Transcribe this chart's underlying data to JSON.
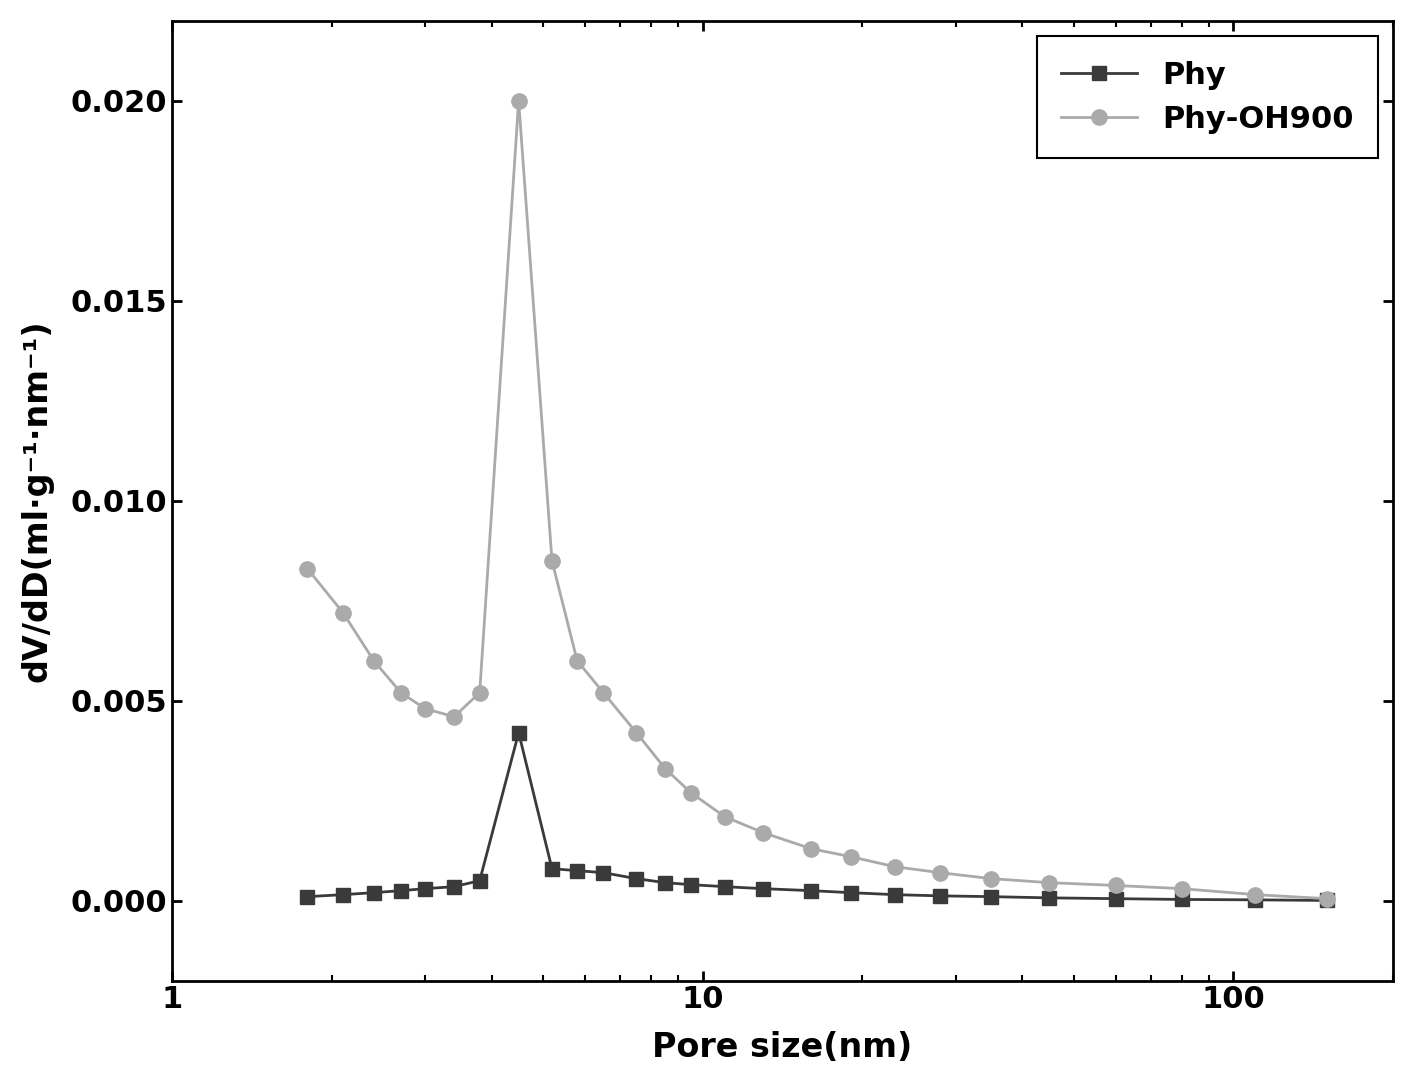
{
  "title": "",
  "xlabel": "Pore size(nm)",
  "ylabel": "dV/dD(ml·g⁻¹·nm⁻¹)",
  "xlim": [
    1,
    200
  ],
  "ylim": [
    -0.002,
    0.022
  ],
  "yticks": [
    0.0,
    0.005,
    0.01,
    0.015,
    0.02
  ],
  "background_color": "#ffffff",
  "phy_color": "#3a3a3a",
  "phyoh_color": "#aaaaaa",
  "phy_x": [
    1.8,
    2.1,
    2.4,
    2.7,
    3.0,
    3.4,
    3.8,
    4.5,
    5.2,
    5.8,
    6.5,
    7.5,
    8.5,
    9.5,
    11.0,
    13.0,
    16.0,
    19.0,
    23.0,
    28.0,
    35.0,
    45.0,
    60.0,
    80.0,
    110.0,
    150.0
  ],
  "phy_y": [
    0.0001,
    0.00015,
    0.0002,
    0.00025,
    0.0003,
    0.00035,
    0.0005,
    0.0042,
    0.0008,
    0.00075,
    0.0007,
    0.00055,
    0.00045,
    0.0004,
    0.00035,
    0.0003,
    0.00025,
    0.0002,
    0.00015,
    0.00012,
    0.0001,
    7e-05,
    5e-05,
    3e-05,
    2e-05,
    5e-06
  ],
  "phyoh_x": [
    1.8,
    2.1,
    2.4,
    2.7,
    3.0,
    3.4,
    3.8,
    4.5,
    5.2,
    5.8,
    6.5,
    7.5,
    8.5,
    9.5,
    11.0,
    13.0,
    16.0,
    19.0,
    23.0,
    28.0,
    35.0,
    45.0,
    60.0,
    80.0,
    110.0,
    150.0
  ],
  "phyoh_y": [
    0.0083,
    0.0072,
    0.006,
    0.0052,
    0.0048,
    0.0046,
    0.0052,
    0.02,
    0.0085,
    0.006,
    0.0052,
    0.0042,
    0.0033,
    0.0027,
    0.0021,
    0.0017,
    0.0013,
    0.0011,
    0.00085,
    0.0007,
    0.00055,
    0.00045,
    0.00038,
    0.0003,
    0.00015,
    5e-05
  ],
  "legend_labels": [
    "Phy",
    "Phy-OH900"
  ],
  "fontsize_label": 24,
  "fontsize_tick": 22,
  "fontsize_legend": 22
}
